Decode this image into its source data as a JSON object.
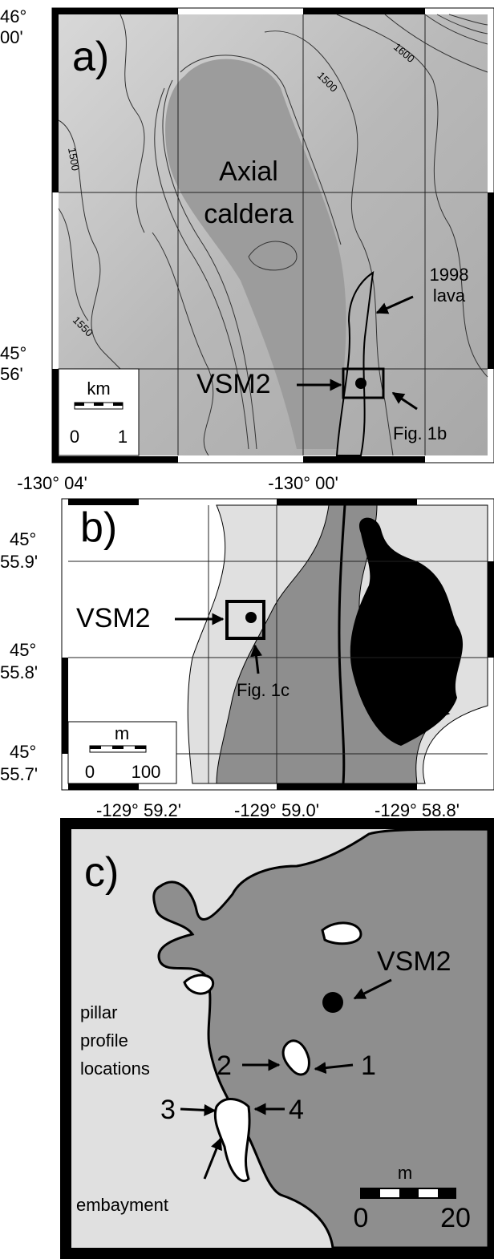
{
  "panel_a": {
    "label": "a)",
    "lat_labels": [
      {
        "deg": "46°",
        "min": "00'"
      },
      {
        "deg": "45°",
        "min": "56'"
      }
    ],
    "lon_labels": [
      "-130° 04'",
      "-130° 00'"
    ],
    "contour_labels": [
      "1600",
      "1500",
      "1500",
      "1550"
    ],
    "caldera": [
      "Axial",
      "caldera"
    ],
    "lava": [
      "1998",
      "lava"
    ],
    "site": "VSM2",
    "inset": "Fig. 1b",
    "scale": {
      "unit": "km",
      "start": "0",
      "end": "1"
    }
  },
  "panel_b": {
    "label": "b)",
    "lat_labels": [
      {
        "deg": "45°",
        "min": "55.9'"
      },
      {
        "deg": "45°",
        "min": "55.8'"
      },
      {
        "deg": "45°",
        "min": "55.7'"
      }
    ],
    "lon_labels": [
      "-129° 59.2'",
      "-129° 59.0'",
      "-129° 58.8'"
    ],
    "site": "VSM2",
    "inset": "Fig. 1c",
    "scale": {
      "unit": "m",
      "start": "0",
      "end": "100"
    }
  },
  "panel_c": {
    "label": "c)",
    "site": "VSM2",
    "pillar_note": [
      "pillar",
      "profile",
      "locations"
    ],
    "pillars": [
      "1",
      "2",
      "3",
      "4"
    ],
    "embayment": "embayment",
    "scale": {
      "unit": "m",
      "start": "0",
      "end": "20"
    }
  }
}
